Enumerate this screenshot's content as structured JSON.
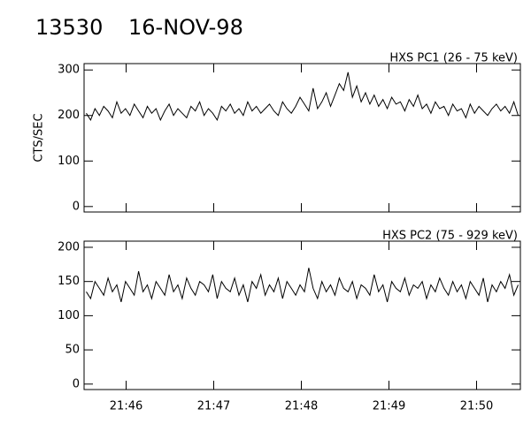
{
  "header": {
    "id": "13530",
    "date": "16-NOV-98"
  },
  "chart_data": [
    {
      "type": "line",
      "label": "HXS PC1 (26 - 75 keV)",
      "ylabel": "CTS/SEC",
      "xlim": [
        45.52,
        50.5
      ],
      "ylim": [
        -12,
        314
      ],
      "yticks": [
        0,
        100,
        200,
        300
      ],
      "color": "#000000",
      "values": [
        205,
        190,
        215,
        200,
        220,
        210,
        195,
        230,
        205,
        215,
        200,
        225,
        210,
        195,
        220,
        205,
        215,
        190,
        210,
        225,
        200,
        215,
        205,
        195,
        220,
        210,
        230,
        200,
        215,
        205,
        190,
        220,
        210,
        225,
        205,
        215,
        200,
        230,
        210,
        220,
        205,
        215,
        225,
        210,
        200,
        230,
        215,
        205,
        220,
        240,
        225,
        210,
        260,
        215,
        230,
        250,
        220,
        245,
        270,
        255,
        295,
        240,
        265,
        230,
        250,
        225,
        245,
        220,
        235,
        215,
        240,
        225,
        230,
        210,
        235,
        220,
        245,
        215,
        225,
        205,
        230,
        215,
        220,
        200,
        225,
        210,
        215,
        195,
        225,
        205,
        220,
        210,
        200,
        215,
        225,
        210,
        220,
        205,
        230,
        200
      ]
    },
    {
      "type": "line",
      "label": "HXS PC2 (75 - 929 keV)",
      "xlim": [
        45.52,
        50.5
      ],
      "ylim": [
        -8,
        209
      ],
      "yticks": [
        0,
        50,
        100,
        150,
        200
      ],
      "xticks": [
        {
          "value": 46,
          "label": "21:46"
        },
        {
          "value": 47,
          "label": "21:47"
        },
        {
          "value": 48,
          "label": "21:48"
        },
        {
          "value": 49,
          "label": "21:49"
        },
        {
          "value": 50,
          "label": "21:50"
        }
      ],
      "color": "#000000",
      "values": [
        135,
        125,
        150,
        140,
        130,
        155,
        135,
        145,
        120,
        150,
        140,
        130,
        165,
        135,
        145,
        125,
        150,
        140,
        130,
        160,
        135,
        145,
        125,
        155,
        140,
        130,
        150,
        145,
        135,
        160,
        125,
        150,
        140,
        135,
        155,
        130,
        145,
        120,
        150,
        140,
        160,
        130,
        145,
        135,
        155,
        125,
        150,
        140,
        130,
        145,
        135,
        170,
        140,
        125,
        150,
        135,
        145,
        130,
        155,
        140,
        135,
        150,
        125,
        145,
        140,
        130,
        160,
        135,
        145,
        120,
        150,
        140,
        135,
        155,
        130,
        145,
        140,
        150,
        125,
        145,
        135,
        155,
        140,
        130,
        150,
        135,
        145,
        125,
        150,
        140,
        130,
        155,
        120,
        145,
        135,
        150,
        140,
        160,
        130,
        145
      ]
    }
  ]
}
